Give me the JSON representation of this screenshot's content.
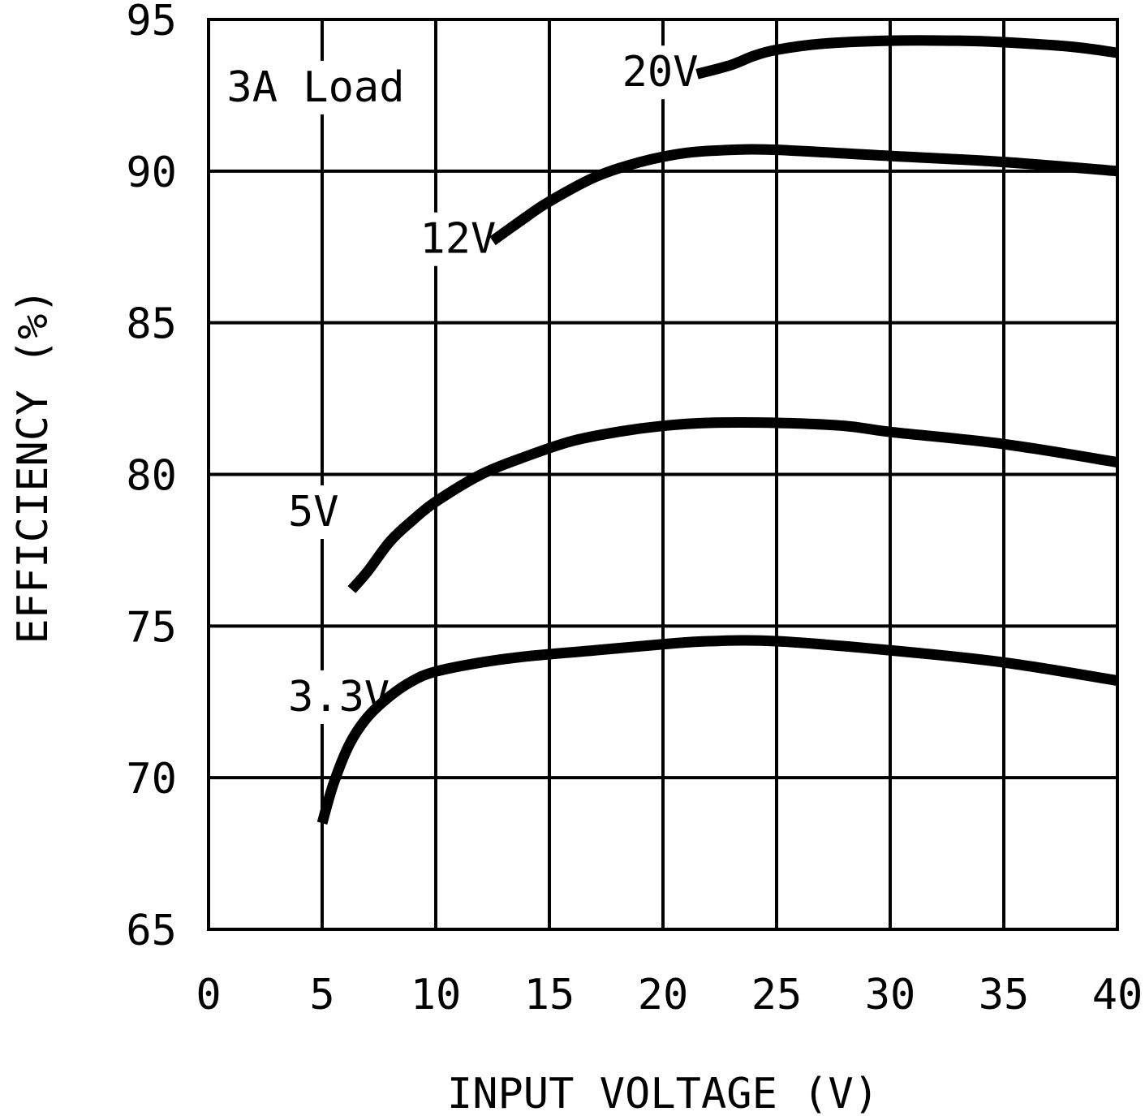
{
  "chart_data": {
    "type": "line",
    "title": "",
    "annotation": "3A Load",
    "xlabel": "INPUT VOLTAGE (V)",
    "ylabel": "EFFICIENCY (%)",
    "xlim": [
      0,
      40
    ],
    "ylim": [
      65,
      95
    ],
    "xticks": [
      "0",
      "5",
      "10",
      "15",
      "20",
      "25",
      "30",
      "35",
      "40"
    ],
    "yticks": [
      "65",
      "70",
      "75",
      "80",
      "85",
      "90",
      "95"
    ],
    "grid": true,
    "line_color": "#000000",
    "series": [
      {
        "name": "3.3V",
        "x": [
          5,
          5.5,
          6.2,
          7,
          8,
          9,
          10,
          12,
          14,
          17,
          20,
          22,
          25,
          30,
          35,
          40
        ],
        "y": [
          68.5,
          69.8,
          71.1,
          72.0,
          72.7,
          73.2,
          73.5,
          73.8,
          74.0,
          74.2,
          74.4,
          74.5,
          74.5,
          74.2,
          73.8,
          73.2
        ]
      },
      {
        "name": "5V",
        "x": [
          6.3,
          7,
          8,
          9,
          10,
          12,
          14,
          16,
          18,
          20,
          22,
          25,
          28,
          30,
          35,
          40
        ],
        "y": [
          76.2,
          76.8,
          77.8,
          78.5,
          79.1,
          80.0,
          80.6,
          81.1,
          81.4,
          81.6,
          81.7,
          81.7,
          81.6,
          81.4,
          81.0,
          80.4
        ]
      },
      {
        "name": "12V",
        "x": [
          12.5,
          14,
          15,
          17,
          19,
          21,
          23,
          25,
          30,
          35,
          40
        ],
        "y": [
          87.7,
          88.5,
          89.0,
          89.8,
          90.3,
          90.6,
          90.7,
          90.7,
          90.5,
          90.3,
          90.0
        ]
      },
      {
        "name": "20V",
        "x": [
          21.5,
          23,
          24,
          25,
          27,
          30,
          33,
          35,
          38,
          40
        ],
        "y": [
          93.2,
          93.5,
          93.8,
          94.0,
          94.2,
          94.3,
          94.3,
          94.25,
          94.1,
          93.9
        ]
      }
    ],
    "series_label_anchors": [
      {
        "x": 3.5,
        "y": 72.2
      },
      {
        "x": 3.5,
        "y": 78.3
      },
      {
        "x": 9.3,
        "y": 87.3
      },
      {
        "x": 18.2,
        "y": 92.8
      }
    ],
    "annotation_anchor": {
      "x": 0.8,
      "y": 92.3
    }
  }
}
